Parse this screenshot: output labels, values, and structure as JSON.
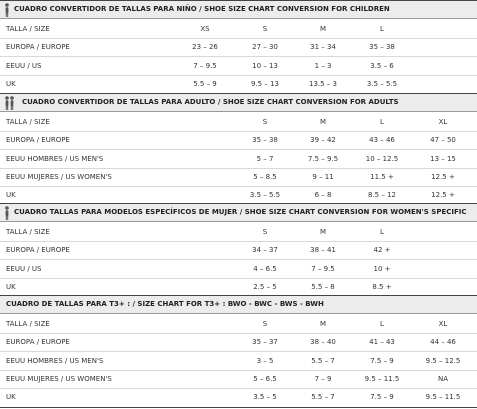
{
  "sections": [
    {
      "title": "CUADRO CONVERTIDOR DE TALLAS PARA NIÑO  /  SHOE SIZE CHART CONVERSION FOR CHILDREN",
      "header": [
        "TALLA / SIZE",
        "XS",
        "S",
        "M",
        "L"
      ],
      "rows": [
        [
          "EUROPA / EUROPE",
          "23 – 26",
          "27 – 30",
          "31 – 34",
          "35 – 38"
        ],
        [
          "EEUU / US",
          "7 – 9.5",
          "10 – 13",
          "1 – 3",
          "3.5 – 6"
        ],
        [
          "UK",
          "5.5 – 9",
          "9.5 – 13",
          "13.5 – 3",
          "3.5 – 5.5"
        ]
      ]
    },
    {
      "title": "CUADRO CONVERTIDOR DE TALLAS PARA ADULTO  /  SHOE SIZE CHART CONVERSION FOR ADULTS",
      "header": [
        "TALLA / SIZE",
        "S",
        "M",
        "L",
        "XL"
      ],
      "rows": [
        [
          "EUROPA / EUROPE",
          "35 – 38",
          "39 – 42",
          "43 – 46",
          "47 – 50"
        ],
        [
          "EEUU HOMBRES / US MEN'S",
          "5 – 7",
          "7.5 – 9.5",
          "10 – 12.5",
          "13 – 15"
        ],
        [
          "EEUU MUJERES / US WOMEN'S",
          "5 – 8.5",
          "9 – 11",
          "11.5 +",
          "12.5 +"
        ],
        [
          "UK",
          "3.5 – 5.5",
          "6 – 8",
          "8.5 – 12",
          "12.5 +"
        ]
      ]
    },
    {
      "title": "CUADRO TALLAS PARA MODELOS ESPECÍFICOS DE MUJER  /  SHOE SIZE CHART CONVERSION FOR WOMEN'S SPECIFIC",
      "header": [
        "TALLA / SIZE",
        "S",
        "M",
        "L"
      ],
      "rows": [
        [
          "EUROPA / EUROPE",
          "34 – 37",
          "38 – 41",
          "42 +"
        ],
        [
          "EEUU / US",
          "4 – 6.5",
          "7 – 9.5",
          "10 +"
        ],
        [
          "UK",
          "2.5 – 5",
          "5.5 – 8",
          "8.5 +"
        ]
      ]
    },
    {
      "title": "CUADRO DE TALLAS PARA T3+ :   /   SIZE CHART FOR T3+ :   BWO - BWC - BWS - BWH",
      "header": [
        "TALLA / SIZE",
        "S",
        "M",
        "L",
        "XL"
      ],
      "rows": [
        [
          "EUROPA / EUROPE",
          "35 – 37",
          "38 – 40",
          "41 – 43",
          "44 – 46"
        ],
        [
          "EEUU HOMBRES / US MEN'S",
          "3 – 5",
          "5.5 – 7",
          "7.5 – 9",
          "9.5 – 12.5"
        ],
        [
          "EEUU MUJERES / US WOMEN'S",
          "5 – 6.5",
          "7 – 9",
          "9.5 – 11.5",
          "NA"
        ],
        [
          "UK",
          "3.5 – 5",
          "5.5 – 7",
          "7.5 – 9",
          "9.5 – 11.5"
        ]
      ]
    }
  ]
}
